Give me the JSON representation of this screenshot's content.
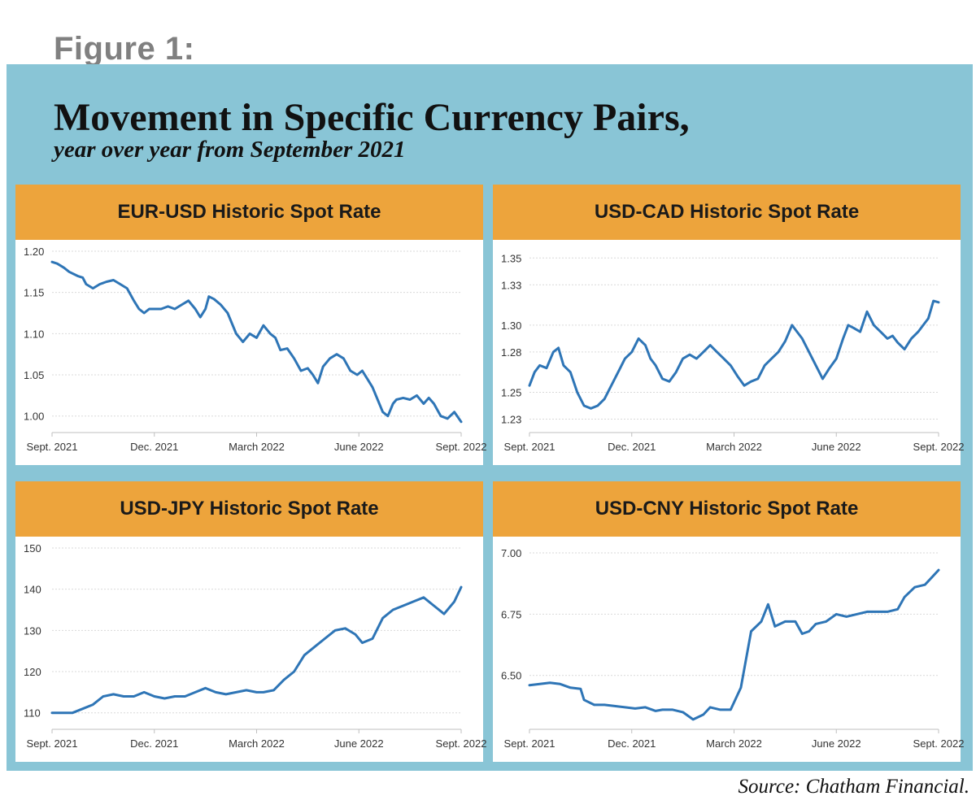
{
  "figure_label": "Figure 1:",
  "title": "Movement in Specific Currency Pairs,",
  "subtitle": "year over year from September 2021",
  "source": "Source: Chatham Financial.",
  "colors": {
    "panel": "#89c5d6",
    "header": "#eda43c",
    "line": "#2e75b6",
    "grid": "#d9d9d9"
  },
  "chart_data": [
    {
      "type": "line",
      "title": "EUR-USD Historic Spot Rate",
      "x_ticks": [
        "Sept. 2021",
        "Dec. 2021",
        "March 2022",
        "June 2022",
        "Sept. 2022"
      ],
      "y_ticks": [
        "1.20",
        "1.15",
        "1.10",
        "1.05",
        "1.00"
      ],
      "ylim": [
        0.98,
        1.2
      ],
      "grid": true,
      "series": [
        {
          "x": [
            0,
            0.15,
            0.35,
            0.5,
            0.75,
            0.9,
            1.0,
            1.2,
            1.4,
            1.6,
            1.8,
            2.0,
            2.2,
            2.4,
            2.55,
            2.7,
            2.85,
            3.0,
            3.2,
            3.4,
            3.6,
            3.8,
            4.0,
            4.2,
            4.35,
            4.5,
            4.6,
            4.75,
            4.95,
            5.15,
            5.4,
            5.6,
            5.8,
            6.0,
            6.2,
            6.4,
            6.55,
            6.7,
            6.9,
            7.1,
            7.3,
            7.5,
            7.65,
            7.8,
            7.95,
            8.15,
            8.35,
            8.55,
            8.75,
            8.95,
            9.1,
            9.25,
            9.4,
            9.55,
            9.7,
            9.85,
            10.0,
            10.1,
            10.3,
            10.5,
            10.7,
            10.9,
            11.05,
            11.2,
            11.4,
            11.6,
            11.8,
            12.0
          ],
          "values": [
            1.187,
            1.185,
            1.18,
            1.175,
            1.17,
            1.168,
            1.16,
            1.155,
            1.16,
            1.163,
            1.165,
            1.16,
            1.155,
            1.14,
            1.13,
            1.125,
            1.13,
            1.13,
            1.13,
            1.133,
            1.13,
            1.135,
            1.14,
            1.13,
            1.12,
            1.13,
            1.145,
            1.142,
            1.135,
            1.125,
            1.1,
            1.09,
            1.1,
            1.095,
            1.11,
            1.1,
            1.095,
            1.08,
            1.082,
            1.07,
            1.055,
            1.058,
            1.05,
            1.04,
            1.06,
            1.07,
            1.075,
            1.07,
            1.055,
            1.05,
            1.055,
            1.045,
            1.035,
            1.02,
            1.005,
            1.0,
            1.015,
            1.02,
            1.022,
            1.02,
            1.025,
            1.015,
            1.022,
            1.015,
            1.0,
            0.997,
            1.005,
            0.993
          ]
        }
      ]
    },
    {
      "type": "line",
      "title": "USD-CAD Historic Spot Rate",
      "x_ticks": [
        "Sept. 2021",
        "Dec. 2021",
        "March 2022",
        "June 2022",
        "Sept. 2022"
      ],
      "y_ticks": [
        "1.35",
        "1.33",
        "1.30",
        "1.28",
        "1.25",
        "1.23"
      ],
      "ylim": [
        1.22,
        1.355
      ],
      "grid": true,
      "series": [
        {
          "x": [
            0,
            0.15,
            0.3,
            0.5,
            0.7,
            0.85,
            1.0,
            1.2,
            1.4,
            1.6,
            1.8,
            2.0,
            2.2,
            2.4,
            2.6,
            2.8,
            3.0,
            3.2,
            3.4,
            3.55,
            3.7,
            3.9,
            4.1,
            4.3,
            4.5,
            4.7,
            4.9,
            5.1,
            5.3,
            5.5,
            5.7,
            5.9,
            6.1,
            6.3,
            6.5,
            6.7,
            6.9,
            7.1,
            7.3,
            7.5,
            7.7,
            7.85,
            8.0,
            8.2,
            8.4,
            8.6,
            8.8,
            9.0,
            9.2,
            9.35,
            9.5,
            9.7,
            9.9,
            10.1,
            10.3,
            10.5,
            10.65,
            10.8,
            11.0,
            11.2,
            11.4,
            11.55,
            11.7,
            11.85,
            12.0
          ],
          "values": [
            1.255,
            1.265,
            1.27,
            1.268,
            1.28,
            1.283,
            1.27,
            1.265,
            1.25,
            1.24,
            1.238,
            1.24,
            1.245,
            1.255,
            1.265,
            1.275,
            1.28,
            1.29,
            1.285,
            1.275,
            1.27,
            1.26,
            1.258,
            1.265,
            1.275,
            1.278,
            1.275,
            1.28,
            1.285,
            1.28,
            1.275,
            1.27,
            1.262,
            1.255,
            1.258,
            1.26,
            1.27,
            1.275,
            1.28,
            1.288,
            1.3,
            1.295,
            1.29,
            1.28,
            1.27,
            1.26,
            1.268,
            1.275,
            1.29,
            1.3,
            1.298,
            1.295,
            1.31,
            1.3,
            1.295,
            1.29,
            1.292,
            1.287,
            1.282,
            1.29,
            1.295,
            1.3,
            1.305,
            1.318,
            1.317
          ]
        }
      ]
    },
    {
      "type": "line",
      "title": "USD-JPY Historic Spot Rate",
      "x_ticks": [
        "Sept. 2021",
        "Dec. 2021",
        "March 2022",
        "June 2022",
        "Sept. 2022"
      ],
      "y_ticks": [
        "150",
        "140",
        "130",
        "120",
        "110"
      ],
      "ylim": [
        106,
        150
      ],
      "grid": true,
      "series": [
        {
          "x": [
            0,
            0.3,
            0.6,
            0.9,
            1.2,
            1.5,
            1.8,
            2.1,
            2.4,
            2.7,
            3.0,
            3.3,
            3.6,
            3.9,
            4.2,
            4.5,
            4.8,
            5.1,
            5.4,
            5.7,
            6.0,
            6.2,
            6.5,
            6.8,
            7.1,
            7.4,
            7.7,
            8.0,
            8.3,
            8.6,
            8.9,
            9.1,
            9.4,
            9.7,
            10.0,
            10.3,
            10.6,
            10.9,
            11.2,
            11.5,
            11.8,
            12.0
          ],
          "values": [
            110,
            110,
            110,
            111,
            112,
            114,
            114.5,
            114,
            114,
            115,
            114,
            113.5,
            114,
            114,
            115,
            116,
            115,
            114.5,
            115,
            115.5,
            115,
            115,
            115.5,
            118,
            120,
            124,
            126,
            128,
            130,
            130.5,
            129,
            127,
            128,
            133,
            135,
            136,
            137,
            138,
            136,
            134,
            137,
            140.5
          ]
        }
      ]
    },
    {
      "type": "line",
      "title": "USD-CNY Historic Spot Rate",
      "x_ticks": [
        "Sept. 2021",
        "Dec. 2021",
        "March 2022",
        "June 2022",
        "Sept. 2022"
      ],
      "y_ticks": [
        "7.00",
        "6.75",
        "6.50"
      ],
      "ylim": [
        6.28,
        7.02
      ],
      "grid": true,
      "series": [
        {
          "x": [
            0,
            0.3,
            0.6,
            0.9,
            1.2,
            1.5,
            1.6,
            1.9,
            2.2,
            2.5,
            2.8,
            3.1,
            3.4,
            3.7,
            3.9,
            4.2,
            4.5,
            4.8,
            5.1,
            5.3,
            5.6,
            5.9,
            6.2,
            6.5,
            6.8,
            7.0,
            7.2,
            7.5,
            7.8,
            8.0,
            8.2,
            8.4,
            8.7,
            9.0,
            9.3,
            9.6,
            9.9,
            10.2,
            10.5,
            10.8,
            11.0,
            11.3,
            11.6,
            11.8,
            12.0
          ],
          "values": [
            6.46,
            6.465,
            6.47,
            6.465,
            6.45,
            6.445,
            6.4,
            6.38,
            6.38,
            6.375,
            6.37,
            6.365,
            6.37,
            6.355,
            6.36,
            6.36,
            6.35,
            6.32,
            6.34,
            6.37,
            6.36,
            6.36,
            6.45,
            6.68,
            6.72,
            6.79,
            6.7,
            6.72,
            6.72,
            6.67,
            6.68,
            6.71,
            6.72,
            6.75,
            6.74,
            6.75,
            6.76,
            6.76,
            6.76,
            6.77,
            6.82,
            6.86,
            6.87,
            6.9,
            6.93
          ]
        }
      ]
    }
  ]
}
